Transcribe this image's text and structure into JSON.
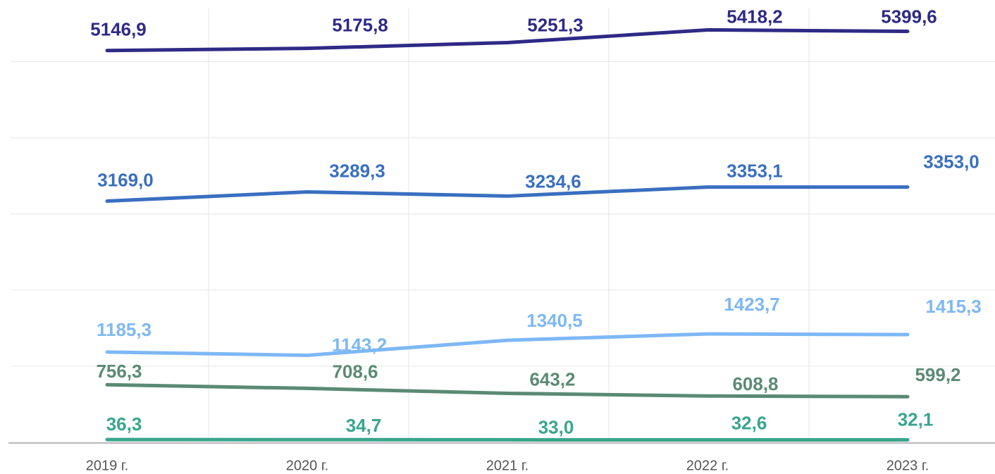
{
  "chart_data": {
    "type": "line",
    "categories": [
      "2019 г.",
      "2020 г.",
      "2021 г.",
      "2022 г.",
      "2023 г."
    ],
    "series": [
      {
        "color": "#2e2a86",
        "values": [
          5146.9,
          5175.8,
          5251.3,
          5418.2,
          5399.6
        ],
        "value_labels": [
          "5146,9",
          "5175,8",
          "5251,3",
          "5418,2",
          "5399,6"
        ]
      },
      {
        "color": "#3a6fc0",
        "values": [
          3169.0,
          3289.3,
          3234.6,
          3353.1,
          3353.0
        ],
        "value_labels": [
          "3169,0",
          "3289,3",
          "3234,6",
          "3353,1",
          "3353,0"
        ]
      },
      {
        "color": "#7eb8f5",
        "values": [
          1185.3,
          1143.2,
          1340.5,
          1423.7,
          1415.3
        ],
        "value_labels": [
          "1185,3",
          "1143,2",
          "1340,5",
          "1423,7",
          "1415,3"
        ]
      },
      {
        "color": "#5a8a74",
        "values": [
          756.3,
          708.6,
          643.2,
          608.8,
          599.2
        ],
        "value_labels": [
          "756,3",
          "708,6",
          "643,2",
          "608,8",
          "599,2"
        ]
      },
      {
        "color": "#3aa58e",
        "values": [
          36.3,
          34.7,
          33.0,
          32.6,
          32.1
        ],
        "value_labels": [
          "36,3",
          "34,7",
          "33,0",
          "32,6",
          "32,1"
        ]
      }
    ],
    "ylim": [
      0,
      5700
    ],
    "yticks": [
      0,
      1000,
      2000,
      3000,
      4000,
      5000
    ],
    "grid": true
  }
}
